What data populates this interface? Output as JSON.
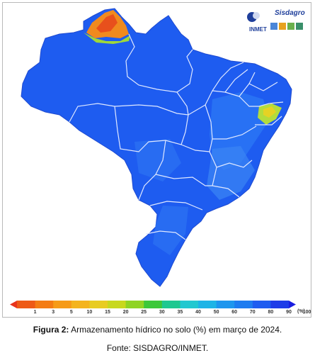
{
  "logo": {
    "title": "Sisdagro",
    "subtitle": "INMET"
  },
  "legend": {
    "colors": [
      "#e8341c",
      "#ee5a16",
      "#f47c14",
      "#f69b18",
      "#f4b41e",
      "#e8cc22",
      "#c8d81e",
      "#8fd424",
      "#3cc83a",
      "#1ec890",
      "#22c8d0",
      "#1eb4e6",
      "#1e96ee",
      "#1e7cf0",
      "#1e5cf0",
      "#1e3ce8",
      "#1a1ee0"
    ],
    "ticks": [
      "1",
      "3",
      "5",
      "10",
      "15",
      "20",
      "25",
      "30",
      "35",
      "40",
      "50",
      "60",
      "70",
      "80",
      "90",
      "100"
    ],
    "unit": "(%)"
  },
  "caption": {
    "label": "Figura 2:",
    "text": " Armazenamento hídrico no solo (%) em março de 2024.",
    "source": "Fonte: SISDAGRO/INMET."
  },
  "colors": {
    "dominant": "#1e5cf0",
    "dry_north": "#f08a1e",
    "dry_northeast": "#b4dc3c"
  }
}
